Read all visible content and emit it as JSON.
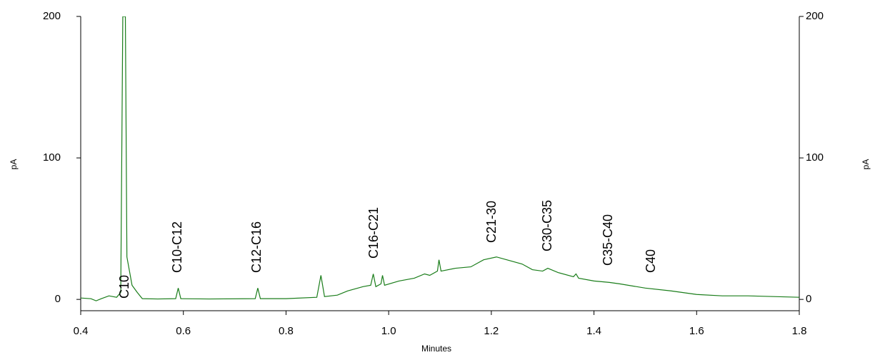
{
  "chart_data": {
    "type": "line",
    "x_label": "Minutes",
    "y_label": "pA",
    "y2_label": "pA",
    "xlim": [
      0.4,
      1.8
    ],
    "xticks": [
      0.4,
      0.6,
      0.8,
      1.0,
      1.2,
      1.4,
      1.6,
      1.8
    ],
    "ylim": [
      -8,
      200
    ],
    "yticks": [
      0,
      100,
      200
    ],
    "y2lim": [
      -8,
      200
    ],
    "y2ticks": [
      0,
      100,
      200
    ],
    "annotations": [
      "C10",
      "C10-C12",
      "C12-C16",
      "C16-C21",
      "C21-30",
      "C30-C35",
      "C35-C40",
      "C40"
    ],
    "series": [
      {
        "name": "signal",
        "color": "#1a7d1a",
        "x": [
          0.4,
          0.42,
          0.43,
          0.44,
          0.455,
          0.47,
          0.478,
          0.482,
          0.487,
          0.49,
          0.5,
          0.51,
          0.52,
          0.55,
          0.585,
          0.59,
          0.595,
          0.65,
          0.74,
          0.745,
          0.75,
          0.8,
          0.86,
          0.868,
          0.875,
          0.9,
          0.92,
          0.95,
          0.965,
          0.97,
          0.975,
          0.985,
          0.988,
          0.992,
          1.02,
          1.05,
          1.07,
          1.08,
          1.095,
          1.098,
          1.102,
          1.13,
          1.16,
          1.185,
          1.21,
          1.23,
          1.26,
          1.28,
          1.3,
          1.31,
          1.33,
          1.36,
          1.365,
          1.37,
          1.4,
          1.43,
          1.45,
          1.5,
          1.55,
          1.6,
          1.65,
          1.7,
          1.75,
          1.8
        ],
        "values": [
          1,
          0.5,
          -1,
          0.5,
          2.5,
          1.5,
          5,
          200,
          200,
          30,
          10,
          5,
          0.5,
          0.3,
          0.5,
          8,
          0.5,
          0.3,
          0.5,
          8,
          0.5,
          0.5,
          1.5,
          17,
          2,
          3,
          6,
          9,
          10,
          18,
          9,
          11,
          17,
          10,
          13,
          15,
          18,
          17,
          20,
          28,
          20,
          22,
          23,
          28,
          30,
          28,
          25,
          21,
          20,
          22,
          19,
          16,
          18,
          15,
          13,
          12,
          11,
          8,
          6,
          3.5,
          2.5,
          2.5,
          2,
          1.5
        ]
      }
    ]
  }
}
